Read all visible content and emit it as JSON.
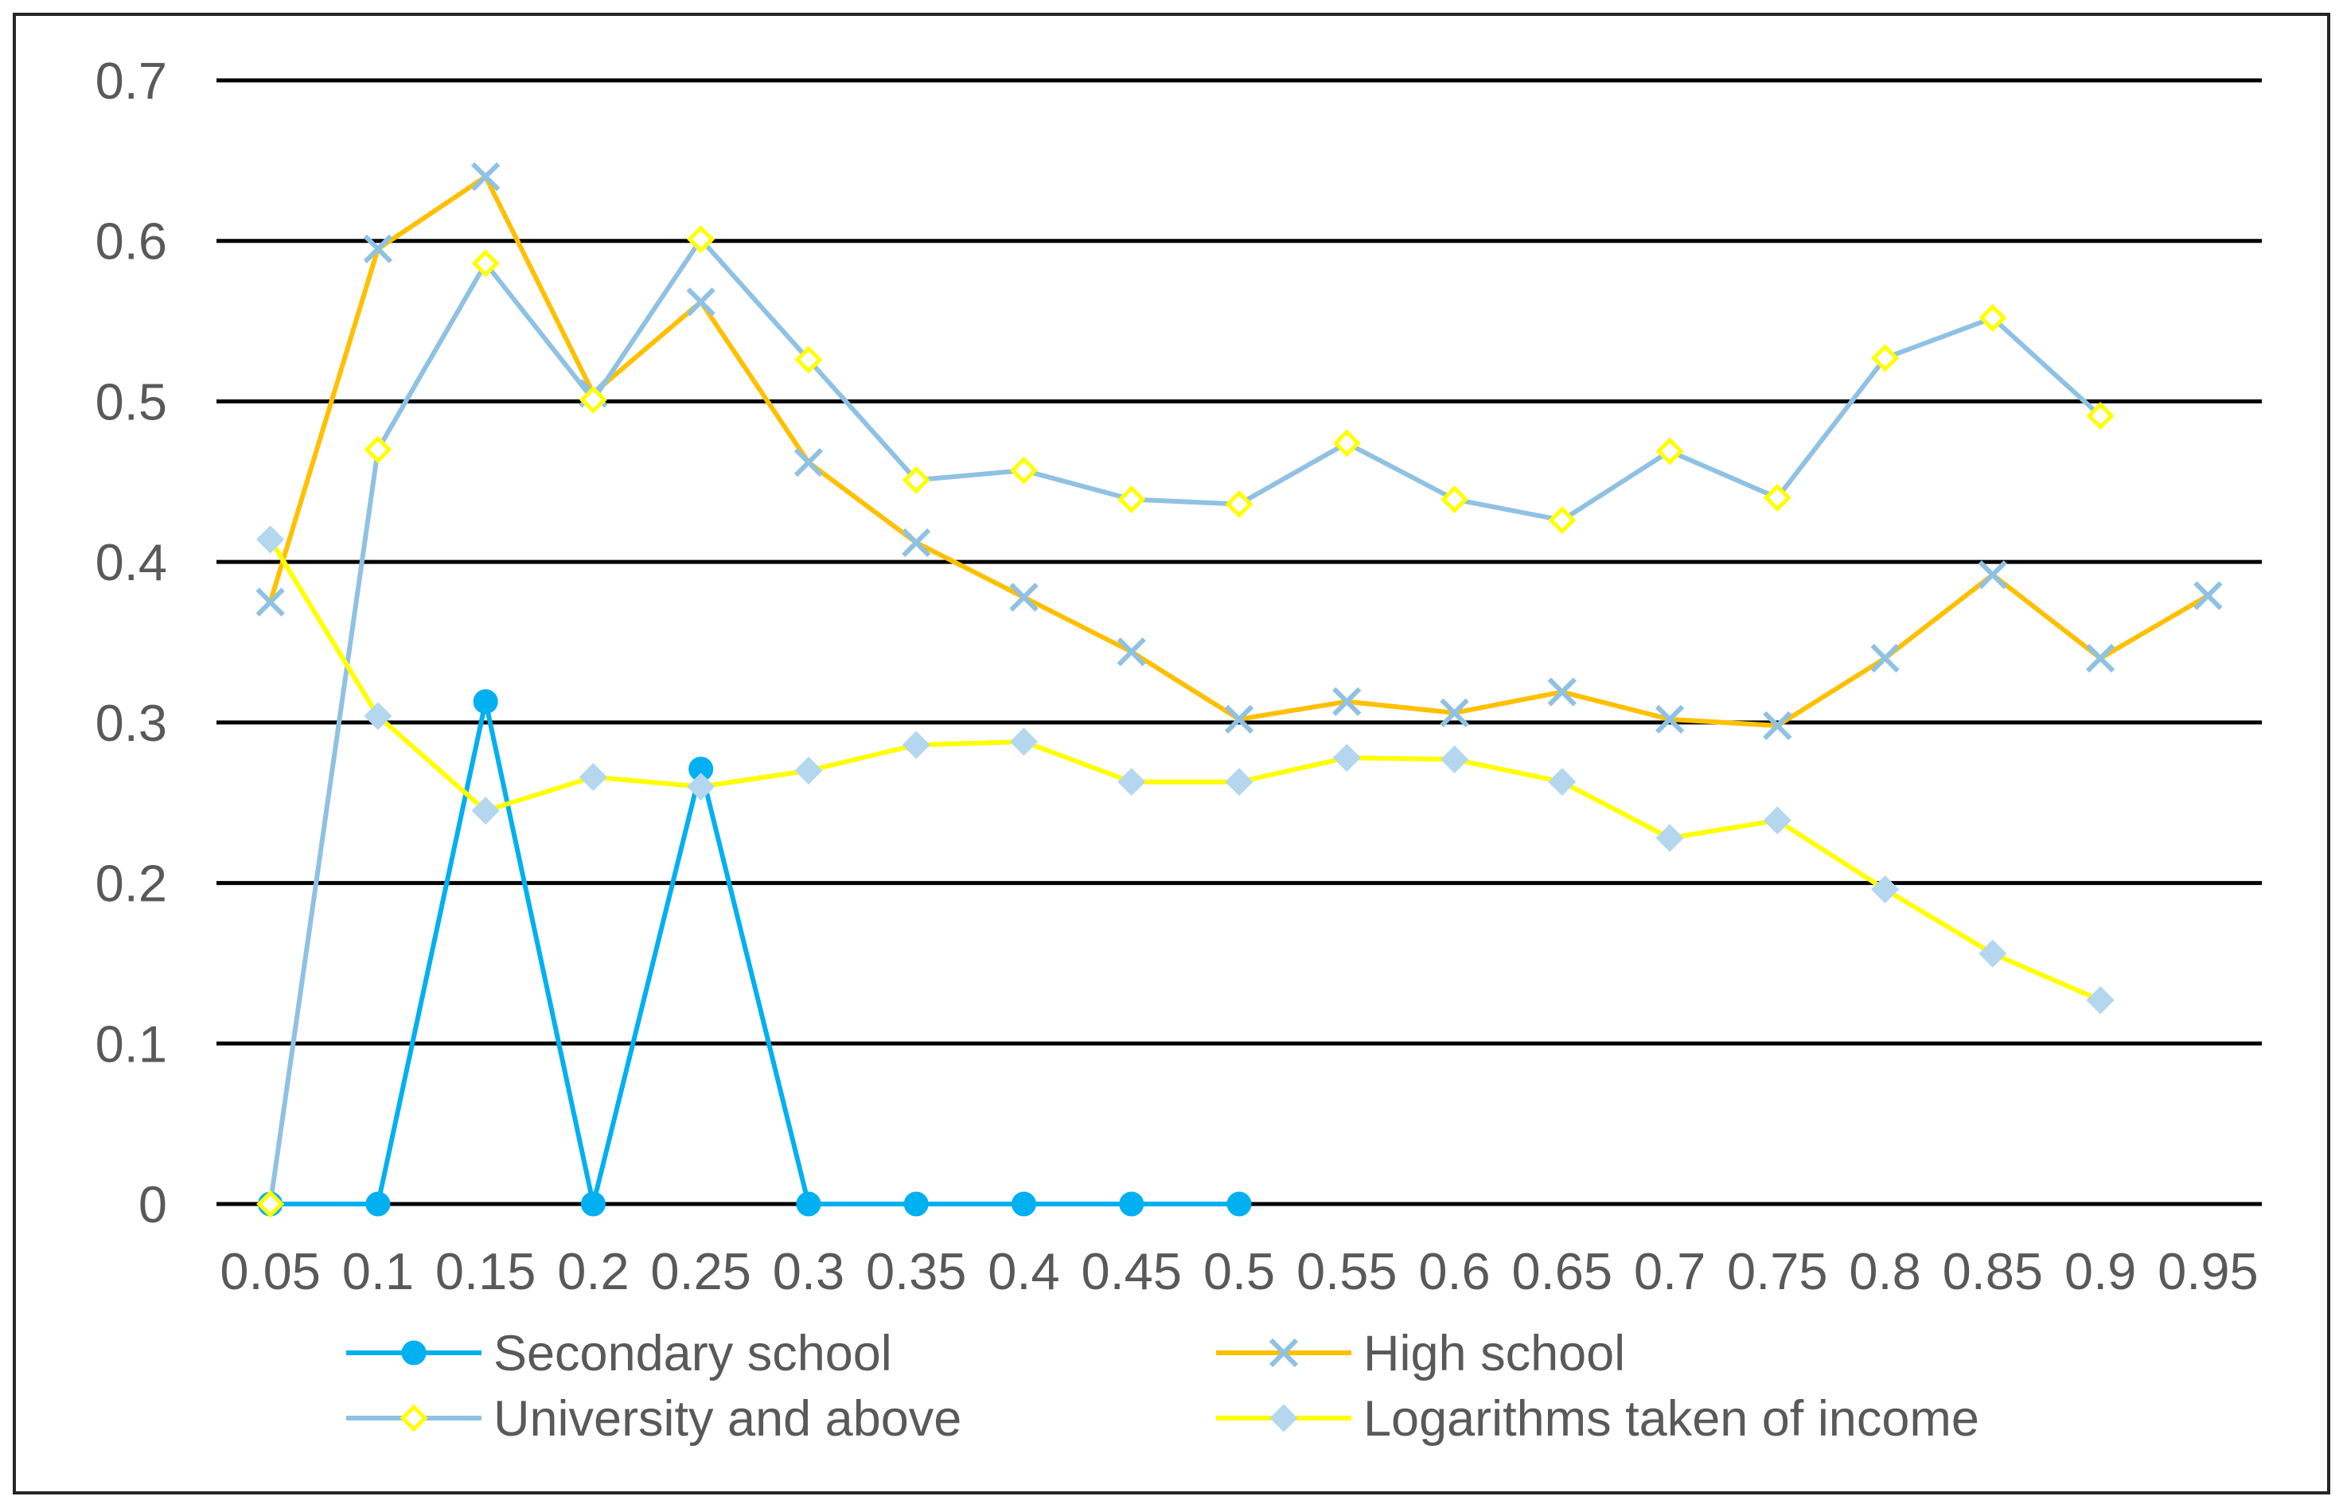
{
  "chart_data": {
    "type": "line",
    "title": "",
    "xlabel": "",
    "ylabel": "",
    "x": [
      "0.05",
      "0.1",
      "0.15",
      "0.2",
      "0.25",
      "0.3",
      "0.35",
      "0.4",
      "0.45",
      "0.5",
      "0.55",
      "0.6",
      "0.65",
      "0.7",
      "0.75",
      "0.8",
      "0.85",
      "0.9",
      "0.95"
    ],
    "ylim": [
      0,
      0.7
    ],
    "yticks": [
      0,
      0.1,
      0.2,
      0.3,
      0.4,
      0.5,
      0.6,
      0.7
    ],
    "ytick_labels": [
      "0",
      "0.1",
      "0.2",
      "0.3",
      "0.4",
      "0.5",
      "0.6",
      "0.7"
    ],
    "grid": true,
    "legend_position": "bottom",
    "series": [
      {
        "name": "Secondary school",
        "color": "#00b0f0",
        "marker": "circle",
        "marker_fill": "#00b0f0",
        "marker_stroke": "#00b0f0",
        "values": [
          0,
          0,
          0.313,
          0,
          0.271,
          0,
          0,
          0,
          0,
          0,
          null,
          null,
          null,
          null,
          null,
          null,
          null,
          null,
          null
        ]
      },
      {
        "name": "High school",
        "color": "#ffc000",
        "marker": "x",
        "marker_fill": "none",
        "marker_stroke": "#8fc1e3",
        "values": [
          0.375,
          0.595,
          0.64,
          0.505,
          0.562,
          0.462,
          0.412,
          0.378,
          0.344,
          0.302,
          0.313,
          0.306,
          0.319,
          0.302,
          0.298,
          0.34,
          0.392,
          0.34,
          0.379
        ]
      },
      {
        "name": "University and above",
        "color": "#8fc1e3",
        "marker": "diamond",
        "marker_fill": "#ffffff",
        "marker_stroke": "#ffff00",
        "values": [
          0,
          0.47,
          0.586,
          0.501,
          0.601,
          0.526,
          0.451,
          0.457,
          0.439,
          0.436,
          0.474,
          0.439,
          0.426,
          0.469,
          0.44,
          0.527,
          0.552,
          0.491,
          null
        ]
      },
      {
        "name": "Logarithms taken of income",
        "color": "#ffff00",
        "marker": "diamond",
        "marker_fill": "#b4d6ef",
        "marker_stroke": "#b4d6ef",
        "values": [
          0.414,
          0.304,
          0.245,
          0.266,
          0.26,
          0.27,
          0.286,
          0.288,
          0.263,
          0.263,
          0.278,
          0.277,
          0.263,
          0.228,
          0.239,
          0.196,
          0.156,
          0.127,
          null
        ]
      }
    ]
  }
}
